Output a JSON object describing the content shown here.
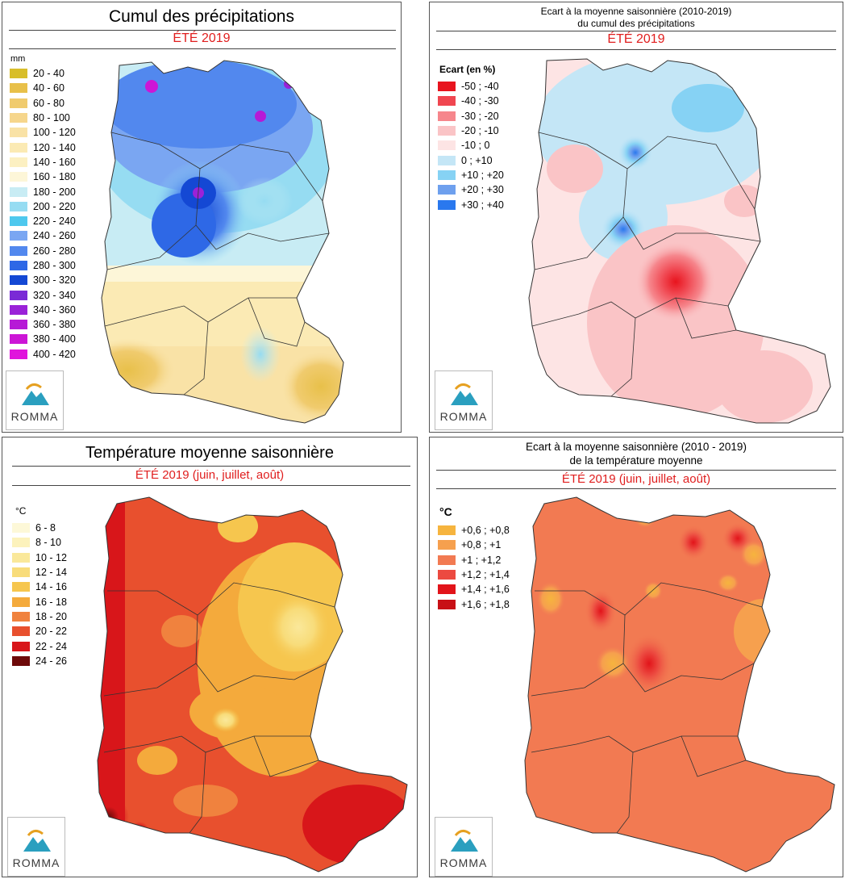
{
  "panels": {
    "precip": {
      "title": "Cumul des précipitations",
      "subtitle": "ÉTÉ 2019",
      "unit": "mm",
      "legend": [
        {
          "label": "20 - 40",
          "color": "#d8be2a"
        },
        {
          "label": "40 - 60",
          "color": "#e8c04a"
        },
        {
          "label": "60 - 80",
          "color": "#f0cb6e"
        },
        {
          "label": "80 - 100",
          "color": "#f6d68c"
        },
        {
          "label": "100 - 120",
          "color": "#f9e2a6"
        },
        {
          "label": "120 - 140",
          "color": "#fbeab4"
        },
        {
          "label": "140 - 160",
          "color": "#fcf0c2"
        },
        {
          "label": "160 - 180",
          "color": "#fdf6d8"
        },
        {
          "label": "180 - 200",
          "color": "#c8ecf4"
        },
        {
          "label": "200 - 220",
          "color": "#96dcf2"
        },
        {
          "label": "220 - 240",
          "color": "#4ec8ee"
        },
        {
          "label": "240 - 260",
          "color": "#7aa6f2"
        },
        {
          "label": "260 - 280",
          "color": "#5288ee"
        },
        {
          "label": "280 - 300",
          "color": "#2e68e6"
        },
        {
          "label": "300 - 320",
          "color": "#1448d4"
        },
        {
          "label": "320 - 340",
          "color": "#7a2ad6"
        },
        {
          "label": "340 - 360",
          "color": "#9a22d8"
        },
        {
          "label": "360 - 380",
          "color": "#b61ad6"
        },
        {
          "label": "380 - 400",
          "color": "#cc16d6"
        },
        {
          "label": "400 - 420",
          "color": "#e014dc"
        }
      ]
    },
    "precip_ecart": {
      "title_line1": "Ecart à la moyenne saisonnière (2010-2019)",
      "title_line2": "du cumul des précipitations",
      "subtitle": "ÉTÉ 2019",
      "unit": "Ecart (en %)",
      "legend": [
        {
          "label": "-50 ; -40",
          "color": "#e8141e"
        },
        {
          "label": "-40 ; -30",
          "color": "#f04650"
        },
        {
          "label": "-30 ; -20",
          "color": "#f6868c"
        },
        {
          "label": "-20 ; -10",
          "color": "#fac4c6"
        },
        {
          "label": "-10 ; 0",
          "color": "#fde4e4"
        },
        {
          "label": "0 ; +10",
          "color": "#c4e6f6"
        },
        {
          "label": "+10 ; +20",
          "color": "#86d2f4"
        },
        {
          "label": "+20 ; +30",
          "color": "#6ea0ee"
        },
        {
          "label": "+30 ; +40",
          "color": "#2a78ee"
        }
      ]
    },
    "temp": {
      "title": "Température moyenne saisonnière",
      "subtitle": "ÉTÉ 2019 (juin, juillet, août)",
      "unit": "°C",
      "legend": [
        {
          "label": "6 - 8",
          "color": "#fdf8d8"
        },
        {
          "label": "8 - 10",
          "color": "#fcf2bc"
        },
        {
          "label": "10 - 12",
          "color": "#fae89a"
        },
        {
          "label": "12 - 14",
          "color": "#f8dc7a"
        },
        {
          "label": "14 - 16",
          "color": "#f6c64e"
        },
        {
          "label": "16 - 18",
          "color": "#f4aa3c"
        },
        {
          "label": "18 - 20",
          "color": "#f0823e"
        },
        {
          "label": "20 - 22",
          "color": "#e8502e"
        },
        {
          "label": "22 - 24",
          "color": "#d8161a"
        },
        {
          "label": "24 - 26",
          "color": "#6e0a0a"
        }
      ]
    },
    "temp_ecart": {
      "title_line1": "Ecart à la moyenne saisonnière (2010 - 2019)",
      "title_line2": "de la température moyenne",
      "subtitle": "ÉTÉ 2019 (juin, juillet, août)",
      "unit": "°C",
      "legend": [
        {
          "label": "+0,6 ; +0,8",
          "color": "#f6b43e"
        },
        {
          "label": "+0,8 ; +1",
          "color": "#f6a04e"
        },
        {
          "label": "+1 ; +1,2",
          "color": "#f27a52"
        },
        {
          "label": "+1,2 ; +1,4",
          "color": "#ec4a40"
        },
        {
          "label": "+1,4 ; +1,6",
          "color": "#e2141a"
        },
        {
          "label": "+1,6 ; +1,8",
          "color": "#c81016"
        }
      ]
    }
  },
  "logo": {
    "text": "ROMMA",
    "icon": "romma-mountain-sun-logo"
  }
}
